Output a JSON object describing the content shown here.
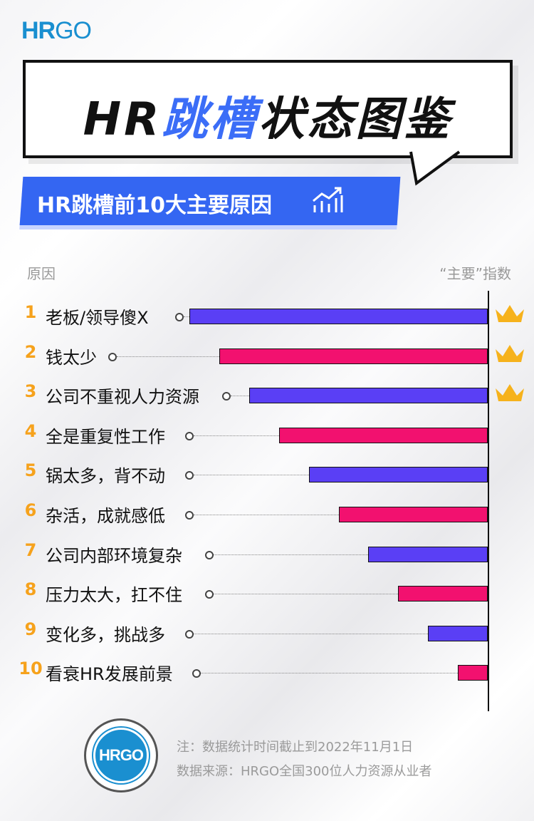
{
  "brand": {
    "logo_hr": "HR",
    "logo_go": "GO",
    "circle_logo": "HRGO"
  },
  "title": {
    "part1": "HR",
    "part2": "跳槽",
    "part3": "状态图鉴"
  },
  "subtitle": "HR跳槽前10大主要原因",
  "header": {
    "left": "原因",
    "right": "“主要”指数"
  },
  "chart_data": {
    "type": "bar",
    "orientation": "horizontal",
    "categories": [
      "老板/领导傻X",
      "钱太少",
      "公司不重视人力资源",
      "全是重复性工作",
      "锅太多，背不动",
      "杂活，成就感低",
      "公司内部环境复杂",
      "压力太大，扛不住",
      "变化多，挑战多",
      "看衰HR发展前景"
    ],
    "ranks": [
      "1",
      "2",
      "3",
      "4",
      "5",
      "6",
      "7",
      "8",
      "9",
      "10"
    ],
    "values": [
      10,
      9,
      8,
      7,
      6,
      5,
      4,
      3,
      2,
      1
    ],
    "colors": [
      "#5a3ff5",
      "#f2116f",
      "#5a3ff5",
      "#f2116f",
      "#5a3ff5",
      "#f2116f",
      "#5a3ff5",
      "#f2116f",
      "#5a3ff5",
      "#f2116f"
    ],
    "crowned_top": 3,
    "crown_color": "#f6b21c",
    "rank_color": "#f6a21c"
  },
  "notes": {
    "line1": "注：数据统计时间截止到2022年11月1日",
    "line2": "数据来源：HRGO全国300位人力资源从业者"
  }
}
